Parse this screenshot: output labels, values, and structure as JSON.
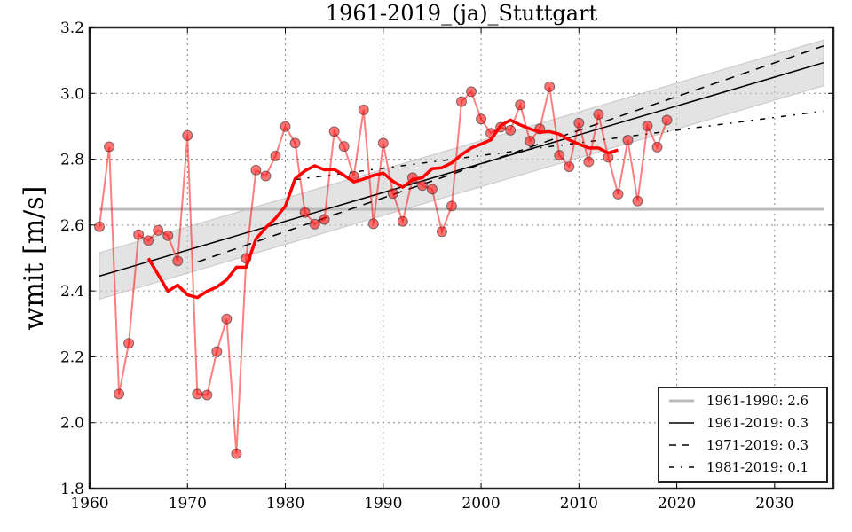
{
  "chart_data": {
    "type": "line",
    "title": "1961-2019_(ja)_Stuttgart",
    "xlabel": "",
    "ylabel": "wmit [m/s]",
    "xlim": [
      1960,
      2036
    ],
    "ylim": [
      1.8,
      3.2
    ],
    "grid": true,
    "x_ticks": [
      1960,
      1970,
      1980,
      1990,
      2000,
      2010,
      2020,
      2030
    ],
    "x_tick_labels": [
      "1960",
      "1970",
      "1980",
      "1990",
      "2000",
      "2010",
      "2020",
      "2030"
    ],
    "y_ticks": [
      1.8,
      2.0,
      2.2,
      2.4,
      2.6,
      2.8,
      3.0,
      3.2
    ],
    "y_tick_labels": [
      "1.8",
      "2.0",
      "2.2",
      "2.4",
      "2.6",
      "2.8",
      "3.0",
      "3.2"
    ],
    "legend_position": "bottom-right",
    "colors": {
      "annual": "#ff0000",
      "moving_average": "#ff0000",
      "baseline": "#bbbbbb",
      "trend": "#000000",
      "band": "#cccccc"
    },
    "series": [
      {
        "name": "annual",
        "style": "markers+line",
        "x": [
          1961,
          1962,
          1963,
          1964,
          1965,
          1966,
          1967,
          1968,
          1969,
          1970,
          1971,
          1972,
          1973,
          1974,
          1975,
          1976,
          1977,
          1978,
          1979,
          1980,
          1981,
          1982,
          1983,
          1984,
          1985,
          1986,
          1987,
          1988,
          1989,
          1990,
          1991,
          1992,
          1993,
          1994,
          1995,
          1996,
          1997,
          1998,
          1999,
          2000,
          2001,
          2002,
          2003,
          2004,
          2005,
          2006,
          2007,
          2008,
          2009,
          2010,
          2011,
          2012,
          2013,
          2014,
          2015,
          2016,
          2017,
          2018,
          2019
        ],
        "values": [
          2.595,
          2.838,
          2.087,
          2.241,
          2.571,
          2.553,
          2.584,
          2.568,
          2.491,
          2.872,
          2.087,
          2.084,
          2.216,
          2.315,
          1.906,
          2.499,
          2.767,
          2.749,
          2.81,
          2.899,
          2.849,
          2.638,
          2.603,
          2.617,
          2.884,
          2.839,
          2.748,
          2.95,
          2.604,
          2.849,
          2.696,
          2.611,
          2.744,
          2.72,
          2.709,
          2.58,
          2.658,
          2.975,
          3.005,
          2.922,
          2.879,
          2.897,
          2.888,
          2.965,
          2.855,
          2.892,
          3.02,
          2.812,
          2.777,
          2.91,
          2.792,
          2.936,
          2.806,
          2.694,
          2.858,
          2.673,
          2.901,
          2.837,
          2.919
        ]
      },
      {
        "name": "moving_average",
        "style": "thick-line",
        "x": [
          1966,
          1967,
          1968,
          1969,
          1970,
          1971,
          1972,
          1973,
          1974,
          1975,
          1976,
          1977,
          1978,
          1979,
          1980,
          1981,
          1982,
          1983,
          1984,
          1985,
          1986,
          1987,
          1988,
          1989,
          1990,
          1991,
          1992,
          1993,
          1994,
          1995,
          1996,
          1997,
          1998,
          1999,
          2000,
          2001,
          2002,
          2003,
          2004,
          2005,
          2006,
          2007,
          2008,
          2009,
          2010,
          2011,
          2012,
          2013,
          2014
        ],
        "values": [
          2.499,
          2.45,
          2.399,
          2.418,
          2.388,
          2.38,
          2.399,
          2.412,
          2.434,
          2.472,
          2.472,
          2.558,
          2.592,
          2.621,
          2.657,
          2.741,
          2.765,
          2.78,
          2.768,
          2.769,
          2.751,
          2.731,
          2.74,
          2.751,
          2.758,
          2.733,
          2.715,
          2.738,
          2.744,
          2.771,
          2.774,
          2.789,
          2.814,
          2.834,
          2.846,
          2.859,
          2.902,
          2.919,
          2.904,
          2.892,
          2.882,
          2.884,
          2.876,
          2.859,
          2.846,
          2.834,
          2.834,
          2.819,
          2.828
        ]
      },
      {
        "name": "1961-1990: 2.6",
        "style": "baseline",
        "x": [
          1961,
          2035
        ],
        "values": [
          2.648,
          2.648
        ]
      },
      {
        "name": "1961-2019: 0.3",
        "style": "solid",
        "x": [
          1961,
          2035
        ],
        "values": [
          2.445,
          3.093
        ]
      },
      {
        "name": "1971-2019: 0.3",
        "style": "dashed",
        "x": [
          1971,
          2035
        ],
        "values": [
          2.488,
          3.144
        ]
      },
      {
        "name": "1981-2019: 0.1",
        "style": "dashdot",
        "x": [
          1981,
          2035
        ],
        "values": [
          2.738,
          2.946
        ]
      }
    ],
    "confidence_band": {
      "name": "1961-2019 band",
      "x": [
        1961,
        2035
      ],
      "upper": [
        2.516,
        3.162
      ],
      "lower": [
        2.375,
        3.023
      ]
    },
    "legend": [
      {
        "label": "1961-1990: 2.6",
        "style": "baseline"
      },
      {
        "label": "1961-2019: 0.3",
        "style": "solid"
      },
      {
        "label": "1971-2019: 0.3",
        "style": "dashed"
      },
      {
        "label": "1981-2019: 0.1",
        "style": "dashdot"
      }
    ]
  }
}
